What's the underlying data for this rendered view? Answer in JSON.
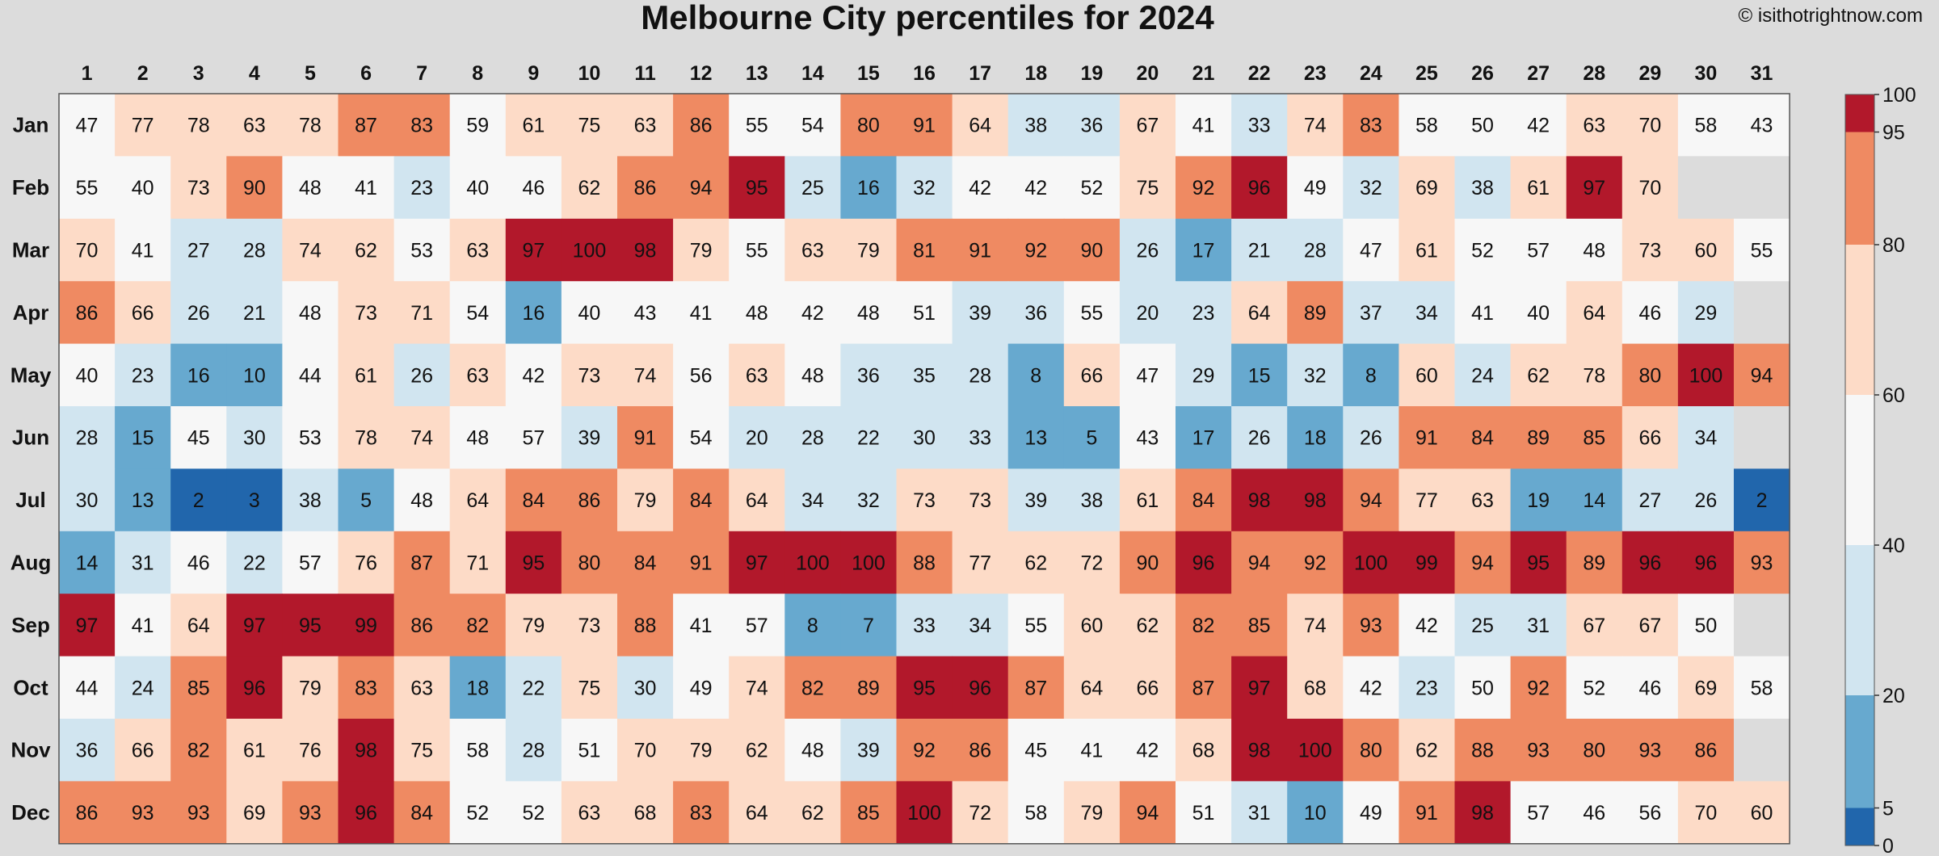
{
  "title": "Melbourne City percentiles for 2024",
  "credit": "© isithotrightnow.com",
  "chart_data": {
    "type": "heatmap",
    "title": "Melbourne City percentiles for 2024",
    "x_categories": [
      "1",
      "2",
      "3",
      "4",
      "5",
      "6",
      "7",
      "8",
      "9",
      "10",
      "11",
      "12",
      "13",
      "14",
      "15",
      "16",
      "17",
      "18",
      "19",
      "20",
      "21",
      "22",
      "23",
      "24",
      "25",
      "26",
      "27",
      "28",
      "29",
      "30",
      "31"
    ],
    "y_categories": [
      "Jan",
      "Feb",
      "Mar",
      "Apr",
      "May",
      "Jun",
      "Jul",
      "Aug",
      "Sep",
      "Oct",
      "Nov",
      "Dec"
    ],
    "values": [
      [
        47,
        77,
        78,
        63,
        78,
        87,
        83,
        59,
        61,
        75,
        63,
        86,
        55,
        54,
        80,
        91,
        64,
        38,
        36,
        67,
        41,
        33,
        74,
        83,
        58,
        50,
        42,
        63,
        70,
        58,
        43
      ],
      [
        55,
        40,
        73,
        90,
        48,
        41,
        23,
        40,
        46,
        62,
        86,
        94,
        95,
        25,
        16,
        32,
        42,
        42,
        52,
        75,
        92,
        96,
        49,
        32,
        69,
        38,
        61,
        97,
        70,
        null,
        null
      ],
      [
        70,
        41,
        27,
        28,
        74,
        62,
        53,
        63,
        97,
        100,
        98,
        79,
        55,
        63,
        79,
        81,
        91,
        92,
        90,
        26,
        17,
        21,
        28,
        47,
        61,
        52,
        57,
        48,
        73,
        60,
        55
      ],
      [
        86,
        66,
        26,
        21,
        48,
        73,
        71,
        54,
        16,
        40,
        43,
        41,
        48,
        42,
        48,
        51,
        39,
        36,
        55,
        20,
        23,
        64,
        89,
        37,
        34,
        41,
        40,
        64,
        46,
        29,
        null
      ],
      [
        40,
        23,
        16,
        10,
        44,
        61,
        26,
        63,
        42,
        73,
        74,
        56,
        63,
        48,
        36,
        35,
        28,
        8,
        66,
        47,
        29,
        15,
        32,
        8,
        60,
        24,
        62,
        78,
        80,
        100,
        94
      ],
      [
        28,
        15,
        45,
        30,
        53,
        78,
        74,
        48,
        57,
        39,
        91,
        54,
        20,
        28,
        22,
        30,
        33,
        13,
        5,
        43,
        17,
        26,
        18,
        26,
        91,
        84,
        89,
        85,
        66,
        34,
        null
      ],
      [
        30,
        13,
        2,
        3,
        38,
        5,
        48,
        64,
        84,
        86,
        79,
        84,
        64,
        34,
        32,
        73,
        73,
        39,
        38,
        61,
        84,
        98,
        98,
        94,
        77,
        63,
        19,
        14,
        27,
        26,
        2
      ],
      [
        14,
        31,
        46,
        22,
        57,
        76,
        87,
        71,
        95,
        80,
        84,
        91,
        97,
        100,
        100,
        88,
        77,
        62,
        72,
        90,
        96,
        94,
        92,
        100,
        99,
        94,
        95,
        89,
        96,
        96,
        93
      ],
      [
        97,
        41,
        64,
        97,
        95,
        99,
        86,
        82,
        79,
        73,
        88,
        41,
        57,
        8,
        7,
        33,
        34,
        55,
        60,
        62,
        82,
        85,
        74,
        93,
        42,
        25,
        31,
        67,
        67,
        50,
        null
      ],
      [
        44,
        24,
        85,
        96,
        79,
        83,
        63,
        18,
        22,
        75,
        30,
        49,
        74,
        82,
        89,
        95,
        96,
        87,
        64,
        66,
        87,
        97,
        68,
        42,
        23,
        50,
        92,
        52,
        46,
        69,
        58
      ],
      [
        36,
        66,
        82,
        61,
        76,
        98,
        75,
        58,
        28,
        51,
        70,
        79,
        62,
        48,
        39,
        92,
        86,
        45,
        41,
        42,
        68,
        98,
        100,
        80,
        62,
        88,
        93,
        80,
        93,
        86,
        null
      ],
      [
        86,
        93,
        93,
        69,
        93,
        96,
        84,
        52,
        52,
        63,
        68,
        83,
        64,
        62,
        85,
        100,
        72,
        58,
        79,
        94,
        51,
        31,
        10,
        49,
        91,
        98,
        57,
        46,
        56,
        70,
        60
      ]
    ],
    "colorbar": {
      "ticks": [
        "0",
        "5",
        "20",
        "40",
        "60",
        "80",
        "95",
        "100"
      ],
      "bins": [
        {
          "from": 0,
          "to": 5,
          "color": "#2166ac"
        },
        {
          "from": 5,
          "to": 20,
          "color": "#67a9cf"
        },
        {
          "from": 20,
          "to": 40,
          "color": "#d1e5f0"
        },
        {
          "from": 40,
          "to": 60,
          "color": "#f7f7f7"
        },
        {
          "from": 60,
          "to": 80,
          "color": "#fddbc7"
        },
        {
          "from": 80,
          "to": 95,
          "color": "#ef8a62"
        },
        {
          "from": 95,
          "to": 100,
          "color": "#b2182b"
        }
      ]
    },
    "missing_color": "#dcdcdc",
    "grid": false
  }
}
